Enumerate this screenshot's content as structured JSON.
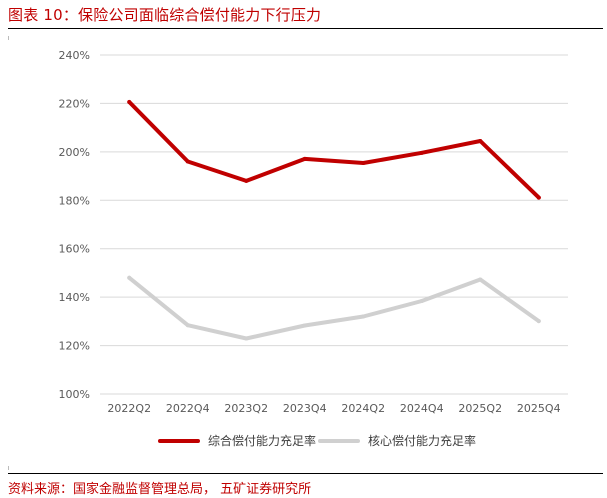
{
  "title": "图表 10：保险公司面临综合偿付能力下行压力",
  "source": "资料来源：国家金融监督管理总局， 五矿证券研究所",
  "colors": {
    "series_1": "#c00000",
    "series_2": "#d0d0d0",
    "grid": "#d9d9d9",
    "title": "#c00000"
  },
  "chart_data": {
    "type": "line",
    "title": "",
    "xlabel": "",
    "ylabel": "",
    "categories": [
      "2022Q2",
      "2022Q4",
      "2023Q2",
      "2023Q4",
      "2024Q2",
      "2024Q4",
      "2025Q2",
      "2025Q4"
    ],
    "y_ticks": [
      "100%",
      "120%",
      "140%",
      "160%",
      "180%",
      "200%",
      "220%",
      "240%"
    ],
    "ylim": [
      100,
      240
    ],
    "y_unit": "%",
    "grid": true,
    "legend_position": "bottom",
    "series": [
      {
        "name": "综合偿付能力充足率",
        "color": "#c00000",
        "values": [
          220.6,
          196.0,
          188.0,
          197.1,
          195.4,
          199.6,
          204.5,
          181.1
        ]
      },
      {
        "name": "核心偿付能力充足率",
        "color": "#d0d0d0",
        "values": [
          148.0,
          128.4,
          122.9,
          128.3,
          132.0,
          138.4,
          147.3,
          130.1
        ]
      }
    ]
  }
}
